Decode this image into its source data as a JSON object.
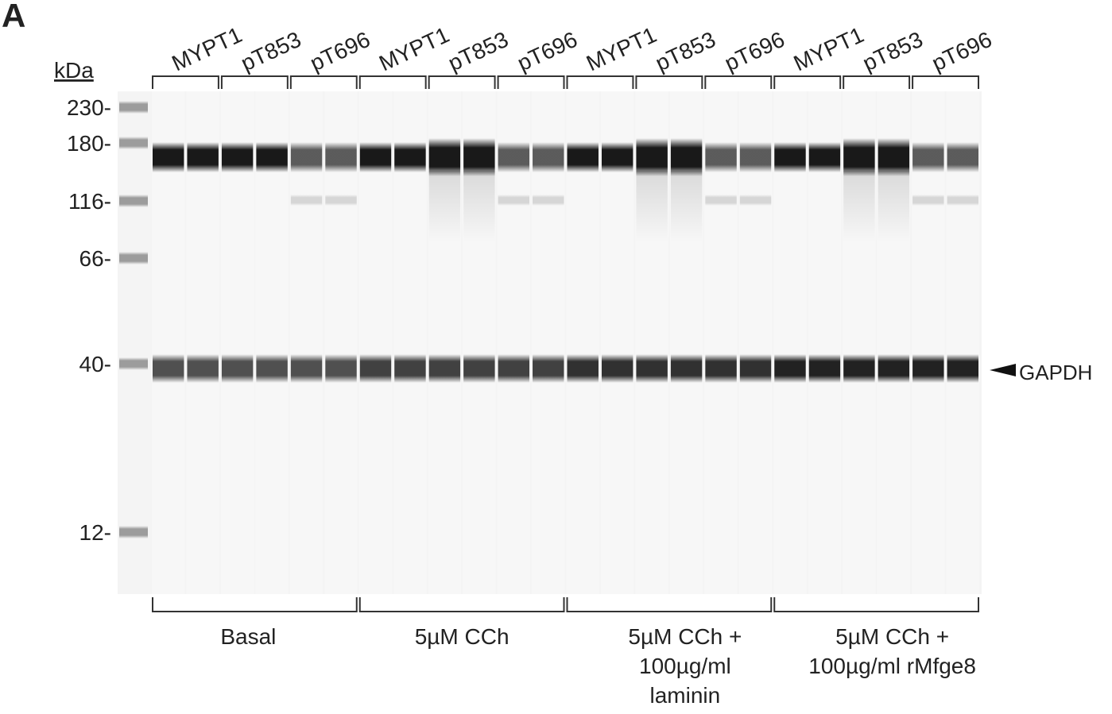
{
  "panel_label": "A",
  "unit_label": "kDa",
  "markers": [
    "230-",
    "180-",
    "116-",
    "66-",
    "40-",
    "12-"
  ],
  "antibodies": [
    "MYPT1",
    "pT853",
    "pT696",
    "MYPT1",
    "pT853",
    "pT696",
    "MYPT1",
    "pT853",
    "pT696",
    "MYPT1",
    "pT853",
    "pT696"
  ],
  "groups": [
    {
      "lines": [
        "Basal"
      ]
    },
    {
      "lines": [
        "5µM CCh"
      ]
    },
    {
      "lines": [
        "5µM CCh +",
        "100µg/ml",
        "laminin"
      ]
    },
    {
      "lines": [
        "5µM CCh +",
        "100µg/ml rMfge8"
      ]
    }
  ],
  "band_label": "GAPDH"
}
